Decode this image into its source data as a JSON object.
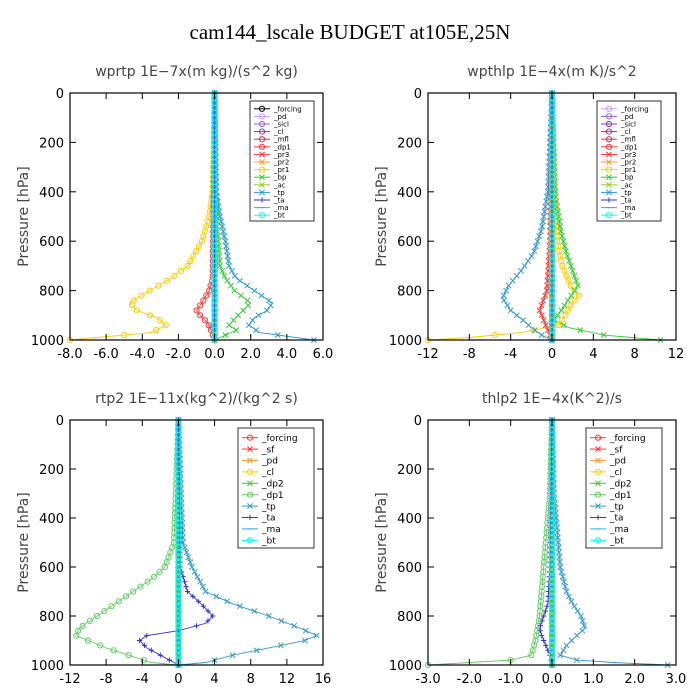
{
  "title": "cam144_lscale  BUDGET at105E,25N",
  "chart_data": [
    {
      "type": "line",
      "title": "wprtp  1E−7x(m kg)/(s^2 kg)",
      "ylabel": "Pressure [hPa]",
      "xlim": [
        -8,
        6
      ],
      "ylim": [
        1000,
        0
      ],
      "xticks": [
        "-8.0",
        "-6.0",
        "-4.0",
        "-2.0",
        "0.0",
        "2.0",
        "4.0",
        "6.0"
      ],
      "xtick_values": [
        -8,
        -6,
        -4,
        -2,
        0,
        2,
        4,
        6
      ],
      "yticks": [
        "0",
        "200",
        "400",
        "600",
        "800",
        "1000"
      ],
      "ytick_values": [
        0,
        200,
        400,
        600,
        800,
        1000
      ],
      "legend_position": "top-right",
      "series": [
        {
          "name": "_forcing",
          "color": "#000000",
          "marker": "o",
          "p": [
            0,
            1000
          ],
          "x": [
            0,
            0
          ]
        },
        {
          "name": "_pd",
          "color": "#cc99ff",
          "marker": "o",
          "p": [
            0,
            1000
          ],
          "x": [
            0,
            0
          ]
        },
        {
          "name": "_sicl",
          "color": "#9966cc",
          "marker": "o",
          "p": [
            0,
            1000
          ],
          "x": [
            0,
            0
          ]
        },
        {
          "name": "_cl",
          "color": "#993399",
          "marker": "o",
          "p": [
            0,
            1000
          ],
          "x": [
            0,
            0
          ]
        },
        {
          "name": "_mfl",
          "color": "#cc3366",
          "marker": "o",
          "p": [
            0,
            1000
          ],
          "x": [
            0,
            0
          ]
        },
        {
          "name": "_dp1",
          "color": "#ff3333",
          "marker": "o",
          "p": [
            0,
            750,
            800,
            850,
            880,
            900,
            930,
            960,
            1000
          ],
          "x": [
            0,
            -0.1,
            -0.3,
            -0.7,
            -1.0,
            -0.8,
            -0.4,
            -0.2,
            0
          ]
        },
        {
          "name": "_pr3",
          "color": "#ff3333",
          "marker": "x",
          "p": [
            0,
            1000
          ],
          "x": [
            0,
            0
          ]
        },
        {
          "name": "_pr2",
          "color": "#ff9933",
          "marker": "x",
          "p": [
            0,
            1000
          ],
          "x": [
            0,
            0
          ]
        },
        {
          "name": "_pr1",
          "color": "#ffcc00",
          "marker": "o",
          "p": [
            0,
            400,
            500,
            600,
            700,
            750,
            800,
            850,
            880,
            910,
            940,
            970,
            990,
            1000
          ],
          "x": [
            0,
            -0.1,
            -0.3,
            -0.7,
            -1.5,
            -2.4,
            -3.6,
            -4.7,
            -4.3,
            -3.2,
            -2.7,
            -3.5,
            -6.5,
            -8.0
          ]
        },
        {
          "name": "_bp",
          "color": "#33cc33",
          "marker": "x",
          "p": [
            0,
            500,
            700,
            750,
            800,
            850,
            900,
            940,
            960,
            980,
            1000
          ],
          "x": [
            0,
            0.1,
            0.3,
            0.6,
            1.1,
            2.0,
            1.3,
            0.8,
            1.2,
            0.6,
            0
          ]
        },
        {
          "name": "_ac",
          "color": "#99cc33",
          "marker": "x",
          "p": [
            0,
            1000
          ],
          "x": [
            0,
            0
          ]
        },
        {
          "name": "_tp",
          "color": "#3399cc",
          "marker": "x",
          "p": [
            0,
            400,
            500,
            600,
            700,
            750,
            800,
            850,
            880,
            910,
            940,
            970,
            990,
            1000
          ],
          "x": [
            0,
            0.1,
            0.3,
            0.6,
            0.8,
            1.2,
            2.2,
            3.2,
            2.9,
            2.2,
            1.9,
            2.5,
            4.5,
            5.5
          ]
        },
        {
          "name": "_ta",
          "color": "#3333cc",
          "marker": "+",
          "p": [
            0,
            1000
          ],
          "x": [
            0,
            0
          ]
        },
        {
          "name": "_ma",
          "color": "#33aadd",
          "marker": "-",
          "p": [
            0,
            1000
          ],
          "x": [
            0,
            0
          ]
        },
        {
          "name": "_bt",
          "color": "#00ffff",
          "marker": "o",
          "p": [
            0,
            1000
          ],
          "x": [
            0,
            0
          ]
        }
      ]
    },
    {
      "type": "line",
      "title": "wpthlp  1E−4x(m K)/s^2",
      "ylabel": "Pressure [hPa]",
      "xlim": [
        -12,
        12
      ],
      "ylim": [
        1000,
        0
      ],
      "xticks": [
        "-12",
        "-8",
        "-4",
        "0",
        "4",
        "8",
        "12"
      ],
      "xtick_values": [
        -12,
        -8,
        -4,
        0,
        4,
        8,
        12
      ],
      "yticks": [
        "0",
        "200",
        "400",
        "600",
        "800",
        "1000"
      ],
      "ytick_values": [
        0,
        200,
        400,
        600,
        800,
        1000
      ],
      "legend_position": "top-right",
      "series": [
        {
          "name": "_forcing",
          "color": "#cc99ff",
          "marker": "o",
          "p": [
            0,
            1000
          ],
          "x": [
            0,
            0
          ]
        },
        {
          "name": "_pd",
          "color": "#9966cc",
          "marker": "o",
          "p": [
            0,
            1000
          ],
          "x": [
            0,
            0
          ]
        },
        {
          "name": "_sicl",
          "color": "#993399",
          "marker": "o",
          "p": [
            0,
            1000
          ],
          "x": [
            0,
            0
          ]
        },
        {
          "name": "_cl",
          "color": "#993399",
          "marker": "o",
          "p": [
            0,
            1000
          ],
          "x": [
            0,
            0
          ]
        },
        {
          "name": "_mfl",
          "color": "#cc3366",
          "marker": "o",
          "p": [
            0,
            1000
          ],
          "x": [
            0,
            0
          ]
        },
        {
          "name": "_dp1",
          "color": "#ff3333",
          "marker": "o",
          "p": [
            0,
            1000
          ],
          "x": [
            0,
            0
          ]
        },
        {
          "name": "_pr3",
          "color": "#ff3333",
          "marker": "x",
          "p": [
            0,
            600,
            800,
            880,
            930,
            970,
            1000
          ],
          "x": [
            0,
            -0.2,
            -0.5,
            -1.2,
            -0.7,
            -0.3,
            0
          ]
        },
        {
          "name": "_pr2",
          "color": "#ff9933",
          "marker": "x",
          "p": [
            0,
            1000
          ],
          "x": [
            0,
            0
          ]
        },
        {
          "name": "_pr1",
          "color": "#ffcc00",
          "marker": "o",
          "p": [
            0,
            400,
            600,
            700,
            780,
            820,
            860,
            900,
            940,
            970,
            990,
            1000
          ],
          "x": [
            0,
            0.2,
            0.5,
            1.0,
            1.8,
            2.6,
            1.8,
            1.3,
            0.6,
            -3.0,
            -8.0,
            -12.0
          ]
        },
        {
          "name": "_bp",
          "color": "#33cc33",
          "marker": "x",
          "p": [
            0,
            400,
            550,
            650,
            720,
            780,
            830,
            880,
            920,
            950,
            980,
            1000
          ],
          "x": [
            0,
            0.3,
            0.8,
            1.4,
            2.0,
            2.5,
            1.7,
            0.9,
            0.2,
            1.6,
            5.0,
            10.5
          ]
        },
        {
          "name": "_ac",
          "color": "#99cc33",
          "marker": "x",
          "p": [
            0,
            1000
          ],
          "x": [
            0,
            0
          ]
        },
        {
          "name": "_tp",
          "color": "#3399cc",
          "marker": "x",
          "p": [
            0,
            400,
            550,
            650,
            720,
            780,
            830,
            880,
            920,
            950,
            980,
            1000
          ],
          "x": [
            0,
            -0.4,
            -1.0,
            -1.8,
            -3.0,
            -4.2,
            -4.8,
            -4.0,
            -2.8,
            -2.0,
            -1.0,
            0
          ]
        },
        {
          "name": "_ta",
          "color": "#3333cc",
          "marker": "+",
          "p": [
            0,
            1000
          ],
          "x": [
            0,
            0
          ]
        },
        {
          "name": "_ma",
          "color": "#33aadd",
          "marker": "-",
          "p": [
            0,
            1000
          ],
          "x": [
            0,
            0
          ]
        },
        {
          "name": "_bt",
          "color": "#00ffff",
          "marker": "o",
          "p": [
            0,
            1000
          ],
          "x": [
            0,
            0
          ]
        }
      ]
    },
    {
      "type": "line",
      "title": "rtp2  1E−11x(kg^2)/(kg^2 s)",
      "ylabel": "Pressure [hPa]",
      "xlim": [
        -12,
        16
      ],
      "ylim": [
        1000,
        0
      ],
      "xticks": [
        "-12",
        "-8",
        "-4",
        "0",
        "4",
        "8",
        "12",
        "16"
      ],
      "xtick_values": [
        -12,
        -8,
        -4,
        0,
        4,
        8,
        12,
        16
      ],
      "yticks": [
        "0",
        "200",
        "400",
        "600",
        "800",
        "1000"
      ],
      "ytick_values": [
        0,
        200,
        400,
        600,
        800,
        1000
      ],
      "legend_position": "top-right",
      "series": [
        {
          "name": "_forcing",
          "color": "#ff3333",
          "marker": "o",
          "p": [
            0,
            1000
          ],
          "x": [
            0,
            0
          ]
        },
        {
          "name": "_sf",
          "color": "#ff3333",
          "marker": "x",
          "p": [
            0,
            1000
          ],
          "x": [
            0,
            0
          ]
        },
        {
          "name": "_pd",
          "color": "#ff9933",
          "marker": "x",
          "p": [
            0,
            1000
          ],
          "x": [
            0,
            0
          ]
        },
        {
          "name": "_cl",
          "color": "#ffcc00",
          "marker": "o",
          "p": [
            0,
            1000
          ],
          "x": [
            0,
            0
          ]
        },
        {
          "name": "_dp2",
          "color": "#33cc33",
          "marker": "x",
          "p": [
            0,
            1000
          ],
          "x": [
            0,
            0
          ]
        },
        {
          "name": "_dp1",
          "color": "#66cc66",
          "marker": "o",
          "p": [
            0,
            500,
            600,
            650,
            700,
            750,
            800,
            850,
            880,
            900,
            930,
            960,
            990,
            1000
          ],
          "x": [
            0,
            -0.5,
            -1.5,
            -3.0,
            -5.0,
            -7.0,
            -9.0,
            -11.0,
            -11.3,
            -10.0,
            -8.0,
            -5.5,
            -3.0,
            0
          ]
        },
        {
          "name": "_tp",
          "color": "#3399cc",
          "marker": "x",
          "p": [
            0,
            500,
            600,
            700,
            750,
            800,
            850,
            880,
            900,
            930,
            960,
            990,
            1000
          ],
          "x": [
            0,
            0.5,
            1.5,
            3.0,
            6.0,
            10.0,
            13.5,
            15.3,
            14.0,
            10.0,
            6.0,
            3.0,
            0
          ]
        },
        {
          "name": "_ta",
          "color": "#3333cc",
          "marker": "+",
          "p": [
            0,
            600,
            700,
            750,
            800,
            830,
            860,
            880,
            900,
            930,
            960,
            990,
            1000
          ],
          "x": [
            0,
            0.2,
            1.0,
            2.5,
            3.8,
            3.0,
            0,
            -3.5,
            -4.3,
            -3.5,
            -2.0,
            -0.5,
            0
          ]
        },
        {
          "name": "_ma",
          "color": "#33aadd",
          "marker": "-",
          "p": [
            0,
            1000
          ],
          "x": [
            0,
            0
          ]
        },
        {
          "name": "_bt",
          "color": "#00ffff",
          "marker": "o",
          "p": [
            0,
            1000
          ],
          "x": [
            0,
            0
          ]
        }
      ]
    },
    {
      "type": "line",
      "title": "thlp2  1E−4x(K^2)/s",
      "ylabel": "Pressure [hPa]",
      "xlim": [
        -3,
        3
      ],
      "ylim": [
        1000,
        0
      ],
      "xticks": [
        "-3.0",
        "-2.0",
        "-1.0",
        "0.0",
        "1.0",
        "2.0",
        "3.0"
      ],
      "xtick_values": [
        -3,
        -2,
        -1,
        0,
        1,
        2,
        3
      ],
      "yticks": [
        "0",
        "200",
        "400",
        "600",
        "800",
        "1000"
      ],
      "ytick_values": [
        0,
        200,
        400,
        600,
        800,
        1000
      ],
      "legend_position": "top-right",
      "series": [
        {
          "name": "_forcing",
          "color": "#ff3333",
          "marker": "o",
          "p": [
            0,
            1000
          ],
          "x": [
            0,
            0
          ]
        },
        {
          "name": "_sf",
          "color": "#ff3333",
          "marker": "x",
          "p": [
            0,
            1000
          ],
          "x": [
            0,
            0
          ]
        },
        {
          "name": "_pd",
          "color": "#ff9933",
          "marker": "x",
          "p": [
            0,
            1000
          ],
          "x": [
            0,
            0
          ]
        },
        {
          "name": "_cl",
          "color": "#ffcc00",
          "marker": "o",
          "p": [
            0,
            1000
          ],
          "x": [
            0,
            0
          ]
        },
        {
          "name": "_dp2",
          "color": "#33cc33",
          "marker": "x",
          "p": [
            0,
            1000
          ],
          "x": [
            0,
            0
          ]
        },
        {
          "name": "_dp1",
          "color": "#66cc66",
          "marker": "o",
          "p": [
            0,
            300,
            500,
            600,
            700,
            800,
            850,
            900,
            930,
            960,
            980,
            990,
            1000
          ],
          "x": [
            0,
            -0.05,
            -0.15,
            -0.2,
            -0.25,
            -0.3,
            -0.35,
            -0.4,
            -0.45,
            -0.5,
            -1.0,
            -2.0,
            -3.0
          ]
        },
        {
          "name": "_tp",
          "color": "#3399cc",
          "marker": "x",
          "p": [
            0,
            300,
            500,
            600,
            700,
            750,
            800,
            850,
            880,
            920,
            960,
            980,
            990,
            1000
          ],
          "x": [
            0,
            0.05,
            0.15,
            0.2,
            0.35,
            0.5,
            0.7,
            0.8,
            0.6,
            0.35,
            0.2,
            0.6,
            1.5,
            2.8
          ]
        },
        {
          "name": "_ta",
          "color": "#3333cc",
          "marker": "+",
          "p": [
            0,
            600,
            750,
            800,
            850,
            880,
            920,
            960,
            1000
          ],
          "x": [
            0,
            -0.05,
            -0.1,
            -0.2,
            -0.3,
            -0.25,
            -0.15,
            -0.05,
            0
          ]
        },
        {
          "name": "_ma",
          "color": "#33aadd",
          "marker": "-",
          "p": [
            0,
            1000
          ],
          "x": [
            0,
            0
          ]
        },
        {
          "name": "_bt",
          "color": "#00ffff",
          "marker": "o",
          "p": [
            0,
            1000
          ],
          "x": [
            0,
            0
          ]
        }
      ]
    }
  ]
}
